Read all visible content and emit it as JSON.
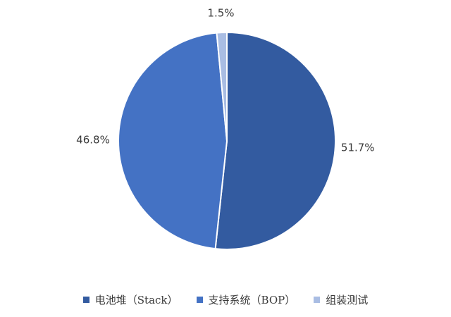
{
  "chart_data": {
    "type": "pie",
    "labels": [
      "电池堆（Stack）",
      "支持系统（BOP）",
      "组装测试"
    ],
    "values": [
      51.7,
      46.8,
      1.5
    ],
    "value_labels": [
      "51.7%",
      "46.8%",
      "1.5%"
    ],
    "colors": [
      "#335ba0",
      "#4472c4",
      "#a9bde3"
    ],
    "start_angle_deg": 0,
    "direction": "clockwise",
    "legend_position": "bottom"
  }
}
